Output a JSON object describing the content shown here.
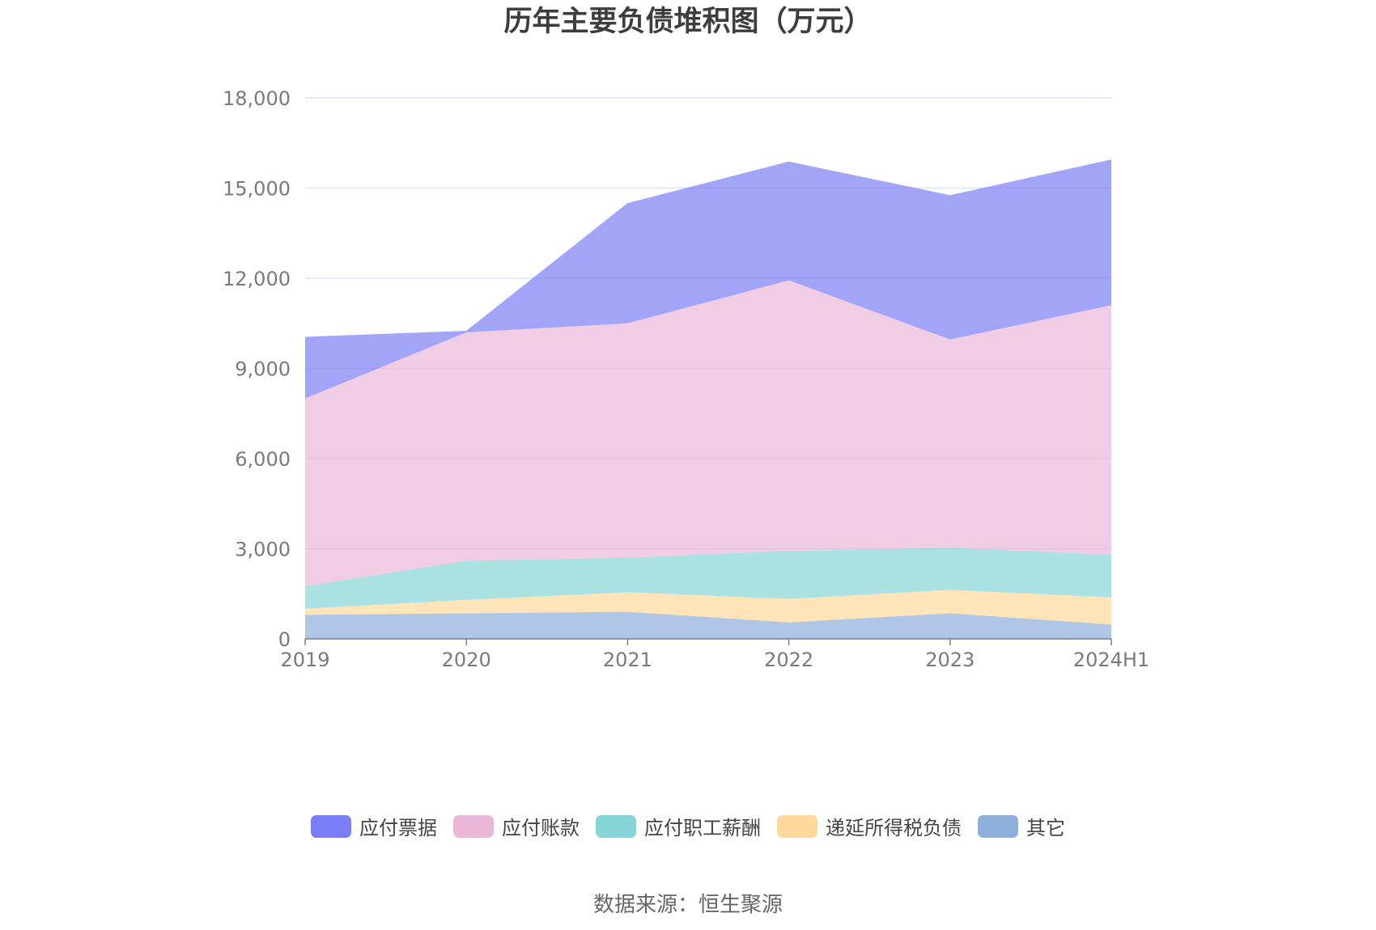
{
  "chart_data": {
    "type": "area",
    "stacked": true,
    "title": "历年主要负债堆积图（万元）",
    "categories": [
      "2019",
      "2020",
      "2021",
      "2022",
      "2023",
      "2024H1"
    ],
    "y_ticks": [
      "0",
      "3,000",
      "6,000",
      "9,000",
      "12,000",
      "15,000",
      "18,000"
    ],
    "ylim": [
      0,
      18000
    ],
    "grid": true,
    "legend_position": "bottom",
    "series": [
      {
        "name": "其它",
        "color": "#8eaedc",
        "values": [
          800,
          850,
          900,
          550,
          850,
          480
        ]
      },
      {
        "name": "递延所得税负债",
        "color": "#fdd89a",
        "values": [
          200,
          450,
          650,
          780,
          780,
          900
        ]
      },
      {
        "name": "应付职工薪酬",
        "color": "#86d5d7",
        "values": [
          750,
          1300,
          1150,
          1600,
          1400,
          1420
        ]
      },
      {
        "name": "应付账款",
        "color": "#e9b8d9",
        "values": [
          6250,
          7600,
          7800,
          9000,
          6930,
          8300
        ]
      },
      {
        "name": "应付票据",
        "color": "#7a7df5",
        "values": [
          2050,
          50,
          4000,
          3950,
          4800,
          4850
        ]
      }
    ],
    "legend_order": [
      "应付票据",
      "应付账款",
      "应付职工薪酬",
      "递延所得税负债",
      "其它"
    ]
  },
  "source_text": "数据来源：恒生聚源"
}
